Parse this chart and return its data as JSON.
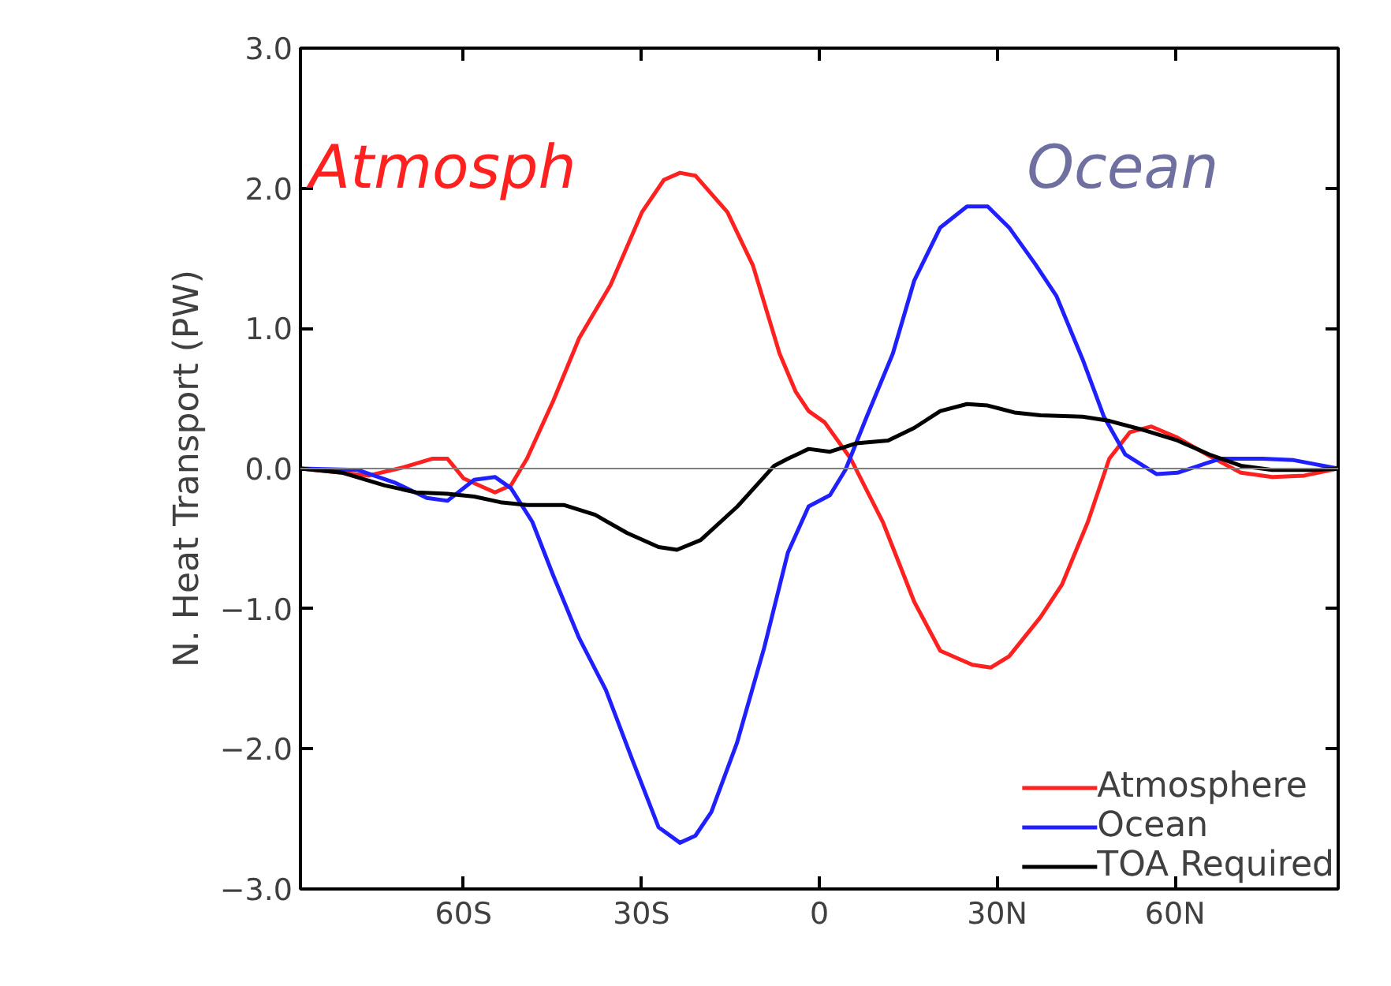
{
  "chart_data": {
    "type": "line",
    "ylabel": "N. Heat Transport (PW)",
    "xlim": [
      -87.5,
      87.5
    ],
    "ylim": [
      -3.0,
      3.0
    ],
    "xticks": [
      {
        "value": -60,
        "label": "60S"
      },
      {
        "value": -30,
        "label": "30S"
      },
      {
        "value": 0,
        "label": "0"
      },
      {
        "value": 30,
        "label": "30N"
      },
      {
        "value": 60,
        "label": "60N"
      }
    ],
    "yticks": [
      {
        "value": -3,
        "label": "−3.0"
      },
      {
        "value": -2,
        "label": "−2.0"
      },
      {
        "value": -1,
        "label": "−1.0"
      },
      {
        "value": 0,
        "label": "0.0"
      },
      {
        "value": 1,
        "label": "1.0"
      },
      {
        "value": 2,
        "label": "2.0"
      },
      {
        "value": 3,
        "label": "3.0"
      }
    ],
    "grid": false,
    "legend": "bottom right",
    "marker": "none",
    "line_style": "solid",
    "ref_lines": [
      {
        "axis": "y",
        "value": 0,
        "color": "#808080"
      }
    ],
    "annotations": [
      "Atmosph",
      "Ocean"
    ],
    "series": [
      {
        "name": "Atmosphere",
        "color": "#ff2020",
        "x": [
          -87.5,
          -76,
          -70,
          -65.3,
          -62.7,
          -60,
          -54.7,
          -52,
          -49.3,
          -44.9,
          -40.5,
          -35.2,
          -29.9,
          -26.2,
          -23.5,
          -20.9,
          -15.5,
          -11.2,
          -6.7,
          -4,
          -1.8,
          0.9,
          5.3,
          10.7,
          16,
          20.4,
          25.8,
          28.9,
          32,
          37.3,
          40.9,
          45.3,
          48.9,
          52.4,
          56,
          60.4,
          65.8,
          71.1,
          76.4,
          81.8,
          87.5
        ],
        "values": [
          0,
          -0.05,
          0.01,
          0.07,
          0.07,
          -0.07,
          -0.17,
          -0.12,
          0.07,
          0.48,
          0.93,
          1.31,
          1.83,
          2.06,
          2.11,
          2.09,
          1.83,
          1.45,
          0.82,
          0.55,
          0.41,
          0.33,
          0.07,
          -0.38,
          -0.95,
          -1.3,
          -1.4,
          -1.42,
          -1.34,
          -1.06,
          -0.83,
          -0.38,
          0.07,
          0.26,
          0.3,
          0.22,
          0.09,
          -0.03,
          -0.06,
          -0.05,
          0
        ]
      },
      {
        "name": "Ocean",
        "color": "#2020ff",
        "x": [
          -87.5,
          -77.8,
          -71.6,
          -66.2,
          -62.7,
          -58.2,
          -54.7,
          -52,
          -48.4,
          -44.9,
          -40.5,
          -36,
          -31.6,
          -27.1,
          -23.5,
          -20.9,
          -18.2,
          -13.9,
          -9.3,
          -5.3,
          -1.8,
          1.8,
          4.4,
          8,
          12.4,
          16,
          20.4,
          24.9,
          28.4,
          32,
          36.4,
          40,
          44.4,
          48,
          51.6,
          56.9,
          60.4,
          67.6,
          74.7,
          80,
          87.5
        ],
        "values": [
          0,
          -0.01,
          -0.1,
          -0.21,
          -0.23,
          -0.08,
          -0.06,
          -0.14,
          -0.38,
          -0.76,
          -1.21,
          -1.58,
          -2.07,
          -2.56,
          -2.67,
          -2.62,
          -2.45,
          -1.96,
          -1.28,
          -0.6,
          -0.27,
          -0.19,
          -0.01,
          0.37,
          0.82,
          1.34,
          1.72,
          1.87,
          1.87,
          1.72,
          1.46,
          1.23,
          0.78,
          0.37,
          0.1,
          -0.04,
          -0.03,
          0.07,
          0.07,
          0.06,
          0
        ]
      },
      {
        "name": "TOA Required",
        "color": "#000000",
        "x": [
          -87.5,
          -80.4,
          -73.3,
          -68,
          -62.7,
          -58.2,
          -53.8,
          -49.3,
          -43.1,
          -37.8,
          -32.4,
          -27.1,
          -24,
          -20,
          -13.8,
          -7.6,
          -5.3,
          -1.8,
          1.8,
          6.2,
          11.6,
          16,
          20.4,
          24.9,
          28.4,
          32.9,
          37.3,
          44.4,
          48.9,
          55.1,
          60.4,
          65.8,
          71.1,
          76.4,
          83.6,
          87.5
        ],
        "values": [
          0,
          -0.03,
          -0.12,
          -0.17,
          -0.18,
          -0.2,
          -0.24,
          -0.26,
          -0.26,
          -0.33,
          -0.46,
          -0.56,
          -0.58,
          -0.51,
          -0.27,
          0.02,
          0.07,
          0.14,
          0.12,
          0.18,
          0.2,
          0.29,
          0.41,
          0.46,
          0.45,
          0.4,
          0.38,
          0.37,
          0.34,
          0.27,
          0.2,
          0.1,
          0.02,
          -0.01,
          -0.01,
          0
        ]
      }
    ]
  }
}
